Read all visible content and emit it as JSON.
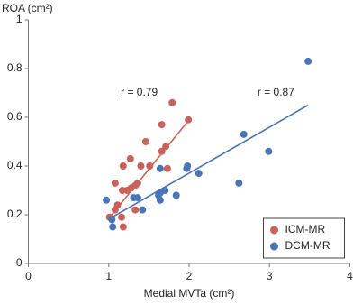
{
  "chart_data": {
    "type": "scatter",
    "y_label": "ROA (cm²)",
    "x_label": "Medial MVTa (cm²)",
    "xlim": [
      0,
      4
    ],
    "xticks": [
      0,
      1,
      2,
      3,
      4
    ],
    "ylim": [
      0,
      1
    ],
    "yticks": [
      0,
      0.2,
      0.4,
      0.6,
      0.8,
      1
    ],
    "annotations": [
      {
        "text": "r = 0.79",
        "x": 1.15,
        "y": 0.7
      },
      {
        "text": "r = 0.87",
        "x": 2.85,
        "y": 0.7
      }
    ],
    "legend": "lower right",
    "series": [
      {
        "name": "ICM-MR",
        "color": "#c8625b",
        "x": [
          1.01,
          1.08,
          1.11,
          1.08,
          1.17,
          1.18,
          1.16,
          1.18,
          1.23,
          1.27,
          1.28,
          1.33,
          1.36,
          1.33,
          1.4,
          1.46,
          1.51,
          1.66,
          1.66,
          1.71,
          1.73,
          1.79,
          1.99
        ],
        "values": [
          0.19,
          0.22,
          0.24,
          0.33,
          0.3,
          0.4,
          0.19,
          0.15,
          0.3,
          0.43,
          0.31,
          0.32,
          0.33,
          0.22,
          0.4,
          0.5,
          0.4,
          0.57,
          0.46,
          0.48,
          0.39,
          0.66,
          0.59
        ],
        "trendline": {
          "x": [
            0.99,
            2.0
          ],
          "y": [
            0.18,
            0.59
          ]
        }
      },
      {
        "name": "DCM-MR",
        "color": "#4a74b4",
        "x": [
          0.97,
          1.04,
          1.05,
          1.31,
          1.36,
          1.42,
          1.64,
          1.64,
          1.62,
          1.64,
          1.7,
          1.84,
          1.97,
          1.98,
          2.12,
          2.62,
          2.68,
          2.99,
          3.48
        ],
        "values": [
          0.26,
          0.18,
          0.15,
          0.27,
          0.27,
          0.22,
          0.39,
          0.29,
          0.28,
          0.26,
          0.3,
          0.28,
          0.39,
          0.4,
          0.37,
          0.33,
          0.53,
          0.46,
          0.83
        ],
        "trendline": {
          "x": [
            0.99,
            3.48
          ],
          "y": [
            0.18,
            0.65
          ]
        }
      }
    ]
  }
}
